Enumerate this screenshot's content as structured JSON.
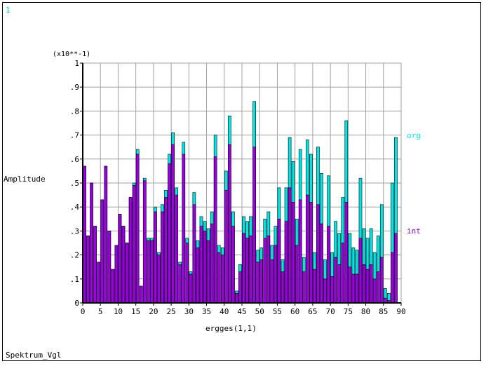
{
  "corner_label": "1",
  "footer_title": "Spektrum_Vgl",
  "colors": {
    "org": "#00e6e6",
    "int": "#9b00e6",
    "outline": "#000000",
    "grid": "#a0a0a0"
  },
  "chart_data": {
    "type": "bar",
    "stacked_overlay": true,
    "xlabel": "ergges(1,1)",
    "ylabel": "Amplitude",
    "y_multiplier": "(x10**-1)",
    "xlim": [
      0,
      90
    ],
    "ylim": [
      0,
      1.0
    ],
    "x_ticks": [
      "0",
      "5",
      "10",
      "15",
      "20",
      "25",
      "30",
      "35",
      "40",
      "45",
      "50",
      "55",
      "60",
      "65",
      "70",
      "75",
      "80",
      "85",
      "90"
    ],
    "y_ticks": [
      "0",
      ".1",
      ".2",
      ".3",
      ".4",
      ".5",
      ".6",
      ".7",
      ".8",
      ".9",
      "1"
    ],
    "grid": true,
    "legend_position": "right",
    "series": [
      {
        "name": "org",
        "color": "#00e6e6",
        "values": [
          0.57,
          0.28,
          0.5,
          0.32,
          0.17,
          0.43,
          0.57,
          0.3,
          0.14,
          0.24,
          0.37,
          0.32,
          0.25,
          0.44,
          0.5,
          0.64,
          0.07,
          0.52,
          0.27,
          0.27,
          0.4,
          0.21,
          0.41,
          0.47,
          0.62,
          0.71,
          0.48,
          0.17,
          0.67,
          0.27,
          0.13,
          0.46,
          0.26,
          0.36,
          0.34,
          0.31,
          0.38,
          0.7,
          0.24,
          0.23,
          0.55,
          0.78,
          0.38,
          0.05,
          0.16,
          0.36,
          0.34,
          0.36,
          0.84,
          0.22,
          0.23,
          0.35,
          0.38,
          0.24,
          0.32,
          0.48,
          0.18,
          0.48,
          0.69,
          0.59,
          0.35,
          0.64,
          0.19,
          0.68,
          0.62,
          0.21,
          0.65,
          0.54,
          0.18,
          0.53,
          0.21,
          0.34,
          0.29,
          0.44,
          0.76,
          0.29,
          0.23,
          0.22,
          0.52,
          0.31,
          0.27,
          0.31,
          0.21,
          0.28,
          0.41,
          0.06,
          0.04,
          0.5,
          0.69
        ]
      },
      {
        "name": "int",
        "color": "#9b00e6",
        "values": [
          0.57,
          0.28,
          0.5,
          0.32,
          0.17,
          0.43,
          0.57,
          0.3,
          0.14,
          0.24,
          0.37,
          0.32,
          0.25,
          0.44,
          0.49,
          0.62,
          0.07,
          0.51,
          0.26,
          0.26,
          0.38,
          0.2,
          0.38,
          0.44,
          0.58,
          0.66,
          0.45,
          0.16,
          0.62,
          0.25,
          0.12,
          0.41,
          0.23,
          0.32,
          0.3,
          0.26,
          0.33,
          0.61,
          0.21,
          0.2,
          0.47,
          0.66,
          0.32,
          0.04,
          0.13,
          0.29,
          0.27,
          0.28,
          0.65,
          0.17,
          0.18,
          0.27,
          0.28,
          0.18,
          0.24,
          0.35,
          0.13,
          0.34,
          0.48,
          0.42,
          0.24,
          0.43,
          0.13,
          0.45,
          0.42,
          0.14,
          0.41,
          0.33,
          0.1,
          0.32,
          0.11,
          0.19,
          0.16,
          0.25,
          0.42,
          0.15,
          0.12,
          0.12,
          0.27,
          0.16,
          0.14,
          0.16,
          0.1,
          0.13,
          0.19,
          0.02,
          0.01,
          0.21,
          0.29
        ]
      }
    ]
  }
}
